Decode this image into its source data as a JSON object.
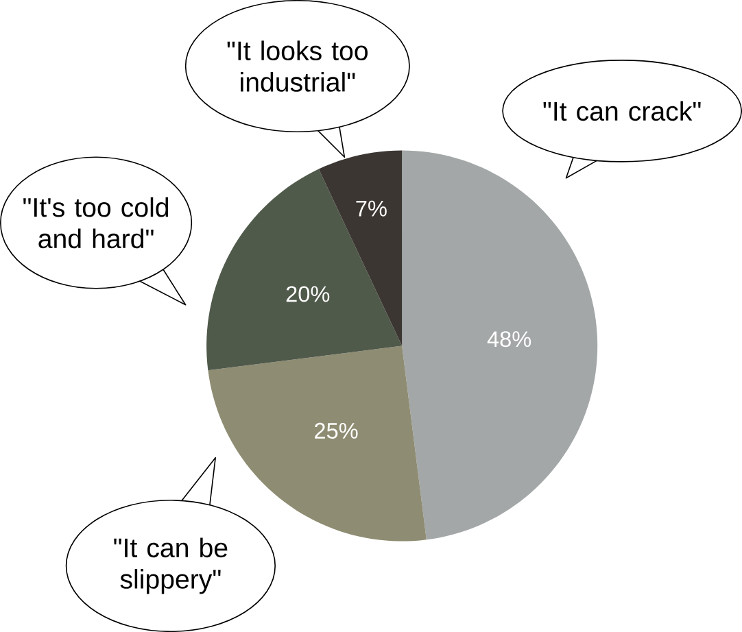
{
  "chart_data": {
    "type": "pie",
    "categories": [
      "\"It can crack\"",
      "\"It can be slippery\"",
      "\"It's too cold and hard\"",
      "\"It looks too industrial\""
    ],
    "values": [
      48,
      25,
      20,
      7
    ],
    "colors": [
      "#a3a7a7",
      "#8e8c72",
      "#505a4b",
      "#3b3631"
    ],
    "value_labels": [
      "48%",
      "25%",
      "20%",
      "7%"
    ]
  }
}
